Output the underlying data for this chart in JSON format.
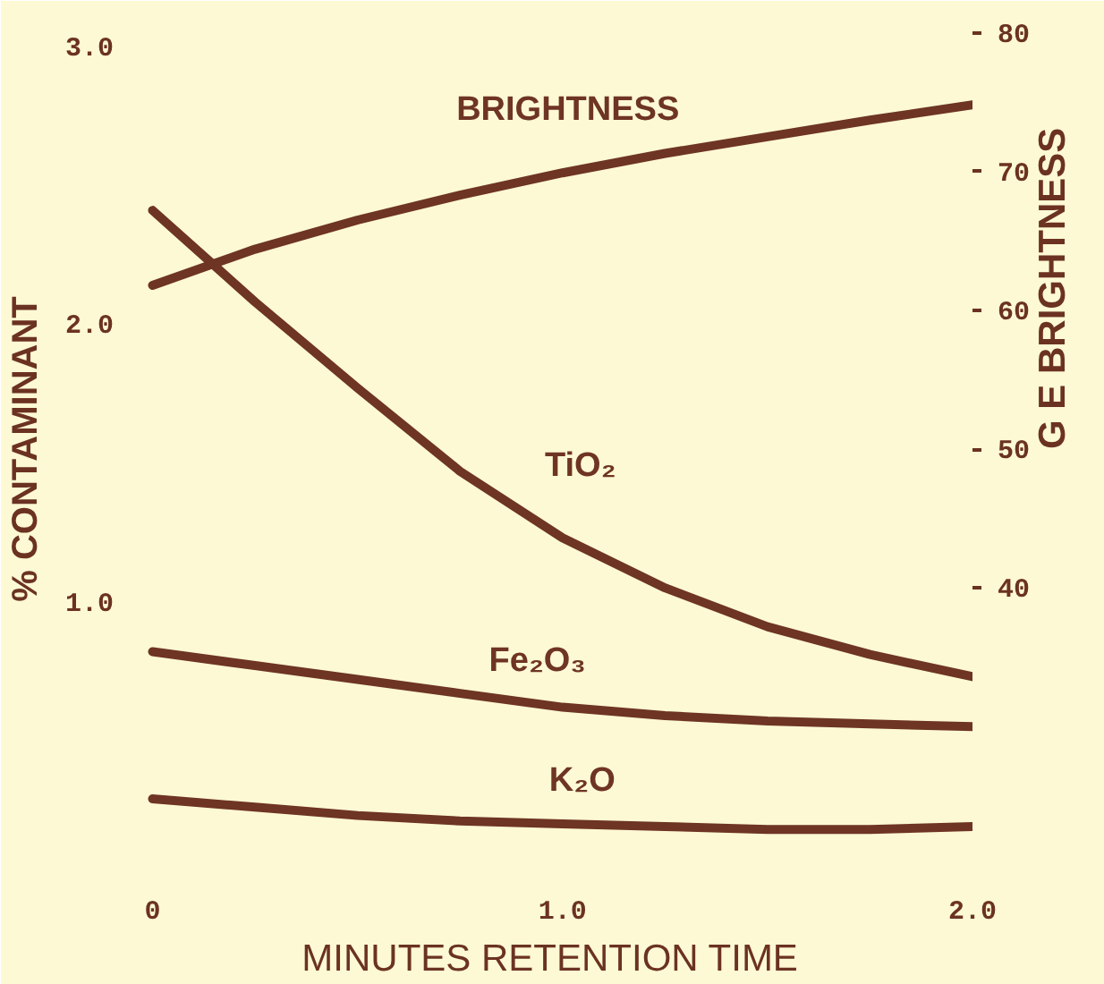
{
  "chart_data": {
    "type": "line",
    "xlabel": "MINUTES RETENTION TIME",
    "ylabel": "% CONTAMINANT",
    "y2label": "G E BRIGHTNESS",
    "x": [
      0,
      0.25,
      0.5,
      0.75,
      1.0,
      1.25,
      1.5,
      1.75,
      2.0
    ],
    "xlim": [
      -0.06,
      2.0
    ],
    "xticks": [
      0,
      {
        "value": 1,
        "label": "1.0"
      },
      {
        "value": 2,
        "label": "2.0"
      }
    ],
    "ylim": [
      0,
      3.1
    ],
    "yticks": [
      {
        "value": 1,
        "label": "1.0"
      },
      {
        "value": 2,
        "label": "2.0"
      },
      {
        "value": 3,
        "label": "3.0"
      }
    ],
    "y2lim": [
      19,
      81
    ],
    "y2ticks": [
      40,
      50,
      60,
      70,
      80
    ],
    "series": [
      {
        "name": "BRIGHTNESS",
        "color": "#6e3424",
        "axis": "y2",
        "values": [
          61.8,
          64.4,
          66.5,
          68.3,
          69.9,
          71.3,
          72.5,
          73.7,
          74.8
        ]
      },
      {
        "name": "TiO₂",
        "color": "#6e3424",
        "values": [
          2.41,
          2.08,
          1.77,
          1.47,
          1.23,
          1.05,
          0.91,
          0.81,
          0.73
        ]
      },
      {
        "name": "Fe₂O₃",
        "color": "#6e3424",
        "values": [
          0.82,
          0.77,
          0.72,
          0.67,
          0.62,
          0.59,
          0.57,
          0.56,
          0.55
        ]
      },
      {
        "name": "K₂O",
        "color": "#6e3424",
        "values": [
          0.29,
          0.26,
          0.23,
          0.21,
          0.2,
          0.19,
          0.18,
          0.18,
          0.19
        ]
      }
    ]
  }
}
